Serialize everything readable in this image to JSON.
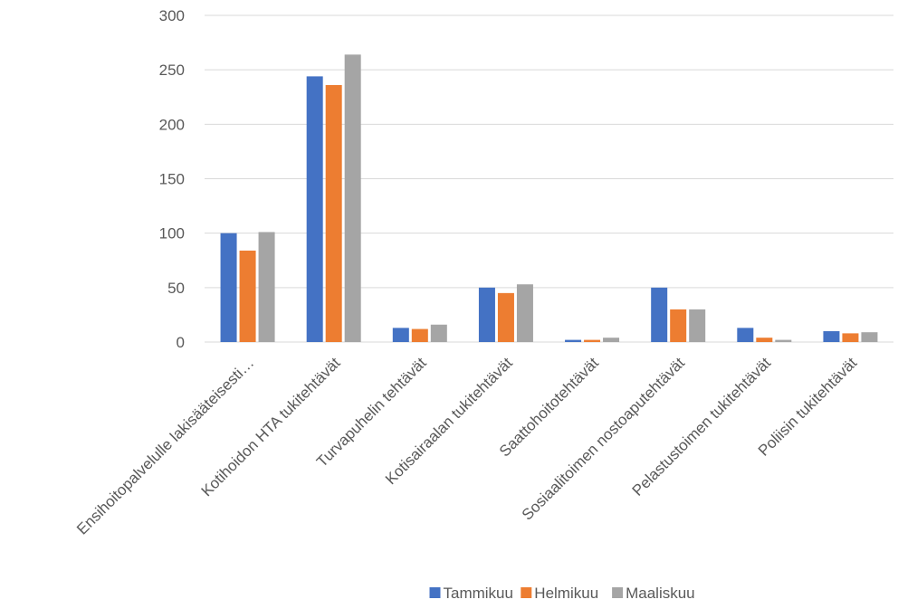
{
  "chart_data": {
    "type": "bar",
    "title": "",
    "xlabel": "",
    "ylabel": "",
    "ylim": [
      0,
      300
    ],
    "yticks": [
      0,
      50,
      100,
      150,
      200,
      250,
      300
    ],
    "grid": true,
    "legend_position": "bottom",
    "categories": [
      "Ensihoitopalvelulle lakisääteisesti…",
      "Kotihoidon HTA tukitehtävät",
      "Turvapuhelin tehtävät",
      "Kotisairaalan tukitehtävät",
      "Saattohoitotehtävät",
      "Sosiaalitoimen nostoaputehtävät",
      "Pelastustoimen tukitehtävät",
      "Poliisin tukitehtävät"
    ],
    "series": [
      {
        "name": "Tammikuu",
        "color": "#4472c4",
        "values": [
          100,
          244,
          13,
          50,
          2,
          50,
          13,
          10
        ]
      },
      {
        "name": "Helmikuu",
        "color": "#ed7d31",
        "values": [
          84,
          236,
          12,
          45,
          2,
          30,
          4,
          8
        ]
      },
      {
        "name": "Maaliskuu",
        "color": "#a5a5a5",
        "values": [
          101,
          264,
          16,
          53,
          4,
          30,
          2,
          9
        ]
      }
    ]
  }
}
